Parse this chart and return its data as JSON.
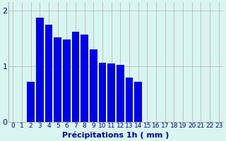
{
  "categories": [
    0,
    1,
    2,
    3,
    4,
    5,
    6,
    7,
    8,
    9,
    10,
    11,
    12,
    13,
    14,
    15,
    16,
    17,
    18,
    19,
    20,
    21,
    22,
    23
  ],
  "values": [
    0.0,
    0.0,
    0.72,
    1.88,
    1.75,
    1.52,
    1.48,
    1.62,
    1.57,
    1.3,
    1.07,
    1.05,
    1.03,
    0.8,
    0.72,
    0.0,
    0.0,
    0.0,
    0.0,
    0.0,
    0.0,
    0.0,
    0.0,
    0.0
  ],
  "bar_color": "#0000ee",
  "background_color": "#d8f5f0",
  "grid_color": "#b0b0b0",
  "text_color": "#0000bb",
  "xlabel": "Précipitations 1h ( mm )",
  "ylim": [
    0,
    2.15
  ],
  "yticks": [
    0,
    1,
    2
  ],
  "ytick_labels": [
    "0",
    "1",
    "2"
  ],
  "xlim": [
    -0.5,
    23.5
  ],
  "tick_fontsize": 6.5,
  "label_fontsize": 8.0,
  "fig_width": 3.2,
  "fig_height": 2.0,
  "dpi": 100
}
